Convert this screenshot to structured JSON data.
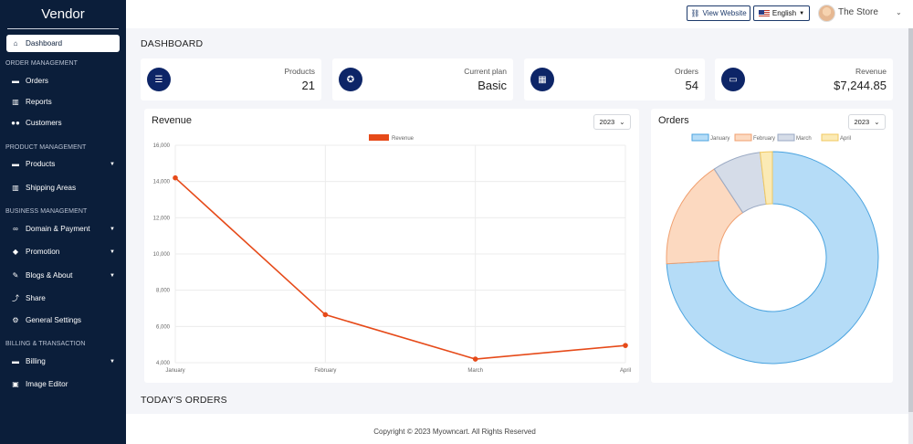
{
  "sidebar": {
    "brand": "Vendor",
    "items": [
      {
        "label": "Dashboard",
        "icon": "home-icon",
        "glyph": "⌂"
      },
      {
        "label": "Orders",
        "icon": "cart-icon",
        "glyph": "🛒"
      },
      {
        "label": "Reports",
        "icon": "chart-icon",
        "glyph": "▥"
      },
      {
        "label": "Customers",
        "icon": "users-icon",
        "glyph": "👥"
      },
      {
        "label": "Products",
        "icon": "cart-icon",
        "glyph": "🛒"
      },
      {
        "label": "Shipping Areas",
        "icon": "bar-chart-icon",
        "glyph": "▥"
      },
      {
        "label": "Domain & Payment",
        "icon": "link-icon",
        "glyph": "⛓"
      },
      {
        "label": "Promotion",
        "icon": "tags-icon",
        "glyph": "🏷"
      },
      {
        "label": "Blogs & About",
        "icon": "edit-icon",
        "glyph": "✎"
      },
      {
        "label": "Share",
        "icon": "share-icon",
        "glyph": "⤴"
      },
      {
        "label": "General Settings",
        "icon": "gear-icon",
        "glyph": "⚙"
      },
      {
        "label": "Billing",
        "icon": "cart-icon",
        "glyph": "🛒"
      },
      {
        "label": "Image Editor",
        "icon": "image-icon",
        "glyph": "▣"
      }
    ],
    "sections": [
      "ORDER MANAGEMENT",
      "PRODUCT MANAGEMENT",
      "BUSINESS MANAGEMENT",
      "BILLING & TRANSACTION"
    ]
  },
  "topbar": {
    "view_website": "View Website",
    "language": "English",
    "store_name": "The Store"
  },
  "page": {
    "title": "DASHBOARD",
    "todays_orders": "TODAY'S ORDERS",
    "footer": "Copyright © 2023 Myowncart. All Rights Reserved"
  },
  "stats": [
    {
      "label": "Products",
      "value": "21",
      "icon": "list-icon"
    },
    {
      "label": "Current plan",
      "value": "Basic",
      "icon": "medal-icon"
    },
    {
      "label": "Orders",
      "value": "54",
      "icon": "table-icon"
    },
    {
      "label": "Revenue",
      "value": "$7,244.85",
      "icon": "money-icon"
    }
  ],
  "revenue_card": {
    "title": "Revenue",
    "year": "2023"
  },
  "orders_card": {
    "title": "Orders",
    "year": "2023"
  },
  "chart_data": [
    {
      "type": "line",
      "title": "Revenue",
      "categories": [
        "January",
        "February",
        "March",
        "April"
      ],
      "series": [
        {
          "name": "Revenue",
          "values": [
            14200,
            6650,
            4200,
            4950
          ],
          "color": "#e64a19"
        }
      ],
      "ylim": [
        4000,
        16000
      ],
      "yticks": [
        "4,000",
        "6,000",
        "8,000",
        "10,000",
        "12,000",
        "14,000",
        "16,000"
      ],
      "grid": true,
      "legend": "top"
    },
    {
      "type": "pie",
      "title": "Orders",
      "categories": [
        "January",
        "February",
        "March",
        "April"
      ],
      "values": [
        40,
        9,
        4,
        1
      ],
      "colors": [
        "#b5dcf7",
        "#fcd9c0",
        "#d5dce8",
        "#fbeab5"
      ],
      "borders": [
        "#4aa3df",
        "#f0a070",
        "#9aa9c3",
        "#f0c860"
      ],
      "donut": true,
      "legend": "top"
    }
  ]
}
